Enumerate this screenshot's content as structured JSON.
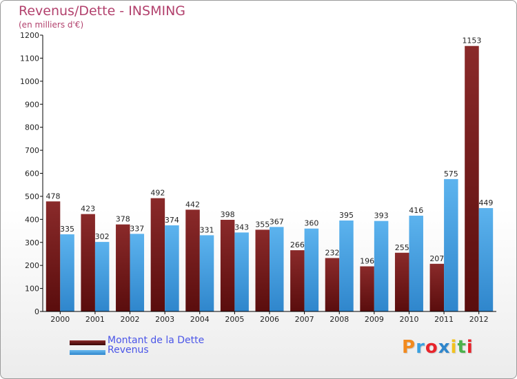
{
  "chart_data": {
    "type": "bar",
    "title": "Revenus/Dette - INSMING",
    "subtitle": "(en milliers d'€)",
    "categories": [
      "2000",
      "2001",
      "2002",
      "2003",
      "2004",
      "2005",
      "2006",
      "2007",
      "2008",
      "2009",
      "2010",
      "2011",
      "2012"
    ],
    "series": [
      {
        "name": "Montant de la Dette",
        "color": "#7a1e1e",
        "values": [
          478,
          423,
          378,
          492,
          442,
          398,
          355,
          266,
          232,
          196,
          255,
          207,
          1153
        ]
      },
      {
        "name": "Revenus",
        "color": "#45a2e6",
        "values": [
          335,
          302,
          337,
          374,
          331,
          343,
          367,
          360,
          395,
          393,
          416,
          575,
          449
        ]
      }
    ],
    "ylim": [
      0,
      1200
    ],
    "yticks": [
      0,
      100,
      200,
      300,
      400,
      500,
      600,
      700,
      800,
      900,
      1000,
      1100,
      1200
    ],
    "grid": false,
    "legend_position": "bottom-left"
  },
  "logo": {
    "text": "Proxiti",
    "icon": "proxiti-logo"
  }
}
